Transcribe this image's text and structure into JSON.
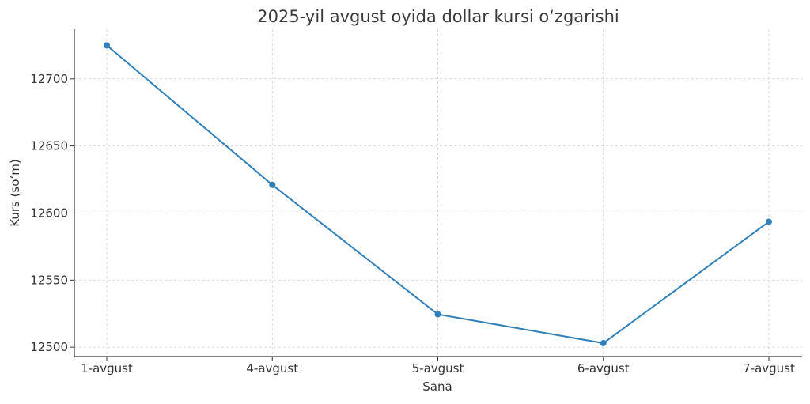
{
  "chart_data": {
    "type": "line",
    "title": "2025-yil avgust oyida dollar kursi o‘zgarishi",
    "xlabel": "Sana",
    "ylabel": "Kurs (so‘m)",
    "categories": [
      "1-avgust",
      "4-avgust",
      "5-avgust",
      "6-avgust",
      "7-avgust"
    ],
    "series": [
      {
        "values": [
          12725,
          12621,
          12524.5,
          12503,
          12593.5
        ],
        "color": "#2f7fb8"
      }
    ],
    "ylim": [
      12493,
      12737
    ],
    "yticks": [
      12500,
      12550,
      12600,
      12650,
      12700
    ],
    "grid": true,
    "markers": true
  }
}
